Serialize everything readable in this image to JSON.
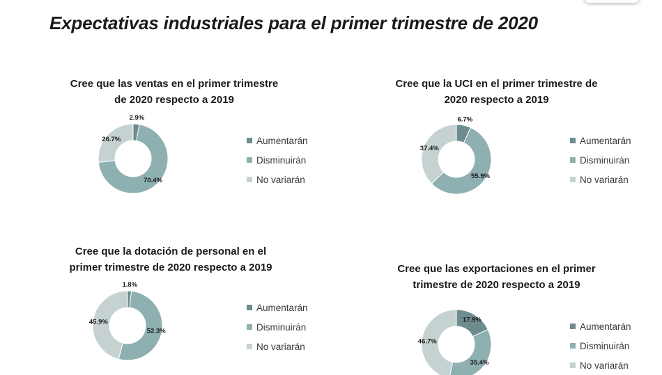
{
  "page": {
    "title": "Expectativas industriales para el primer trimestre de 2020"
  },
  "colors": {
    "aumentaran": "#6e8c8d",
    "disminuiran": "#8fb0b0",
    "no_variaran": "#c6d2d2"
  },
  "chart_data": [
    {
      "type": "pie",
      "donut": true,
      "title_lines": [
        "Cree que las ventas en el primer trimestre",
        "de 2020 respecto a 2019"
      ],
      "categories": [
        "Aumentarán",
        "Disminuirán",
        "No variarán"
      ],
      "values": [
        2.9,
        70.4,
        26.7
      ],
      "labels": [
        "2.9%",
        "70.4%",
        "26.7%"
      ],
      "legend_position": "right"
    },
    {
      "type": "pie",
      "donut": true,
      "title_lines": [
        "Cree que la UCI en el primer trimestre de",
        "2020 respecto a 2019"
      ],
      "categories": [
        "Aumentarán",
        "Disminuirán",
        "No variarán"
      ],
      "values": [
        6.7,
        55.9,
        37.4
      ],
      "labels": [
        "6.7%",
        "55.9%",
        "37.4%"
      ],
      "legend_position": "right"
    },
    {
      "type": "pie",
      "donut": true,
      "title_lines": [
        "Cree que la dotación de personal en el",
        "primer trimestre de 2020 respecto a 2019"
      ],
      "categories": [
        "Aumentarán",
        "Disminuirán",
        "No variarán"
      ],
      "values": [
        1.8,
        52.3,
        45.9
      ],
      "labels": [
        "1.8%",
        "52.3%",
        "45.9%"
      ],
      "legend_position": "right"
    },
    {
      "type": "pie",
      "donut": true,
      "title_lines": [
        "Cree que las exportaciones  en el primer",
        "trimestre de 2020 respecto a 2019"
      ],
      "categories": [
        "Aumentarán",
        "Disminuirán",
        "No variarán"
      ],
      "values": [
        17.9,
        35.4,
        46.7
      ],
      "labels": [
        "17.9%",
        "35.4%",
        "46.7%"
      ],
      "legend_position": "right"
    }
  ]
}
